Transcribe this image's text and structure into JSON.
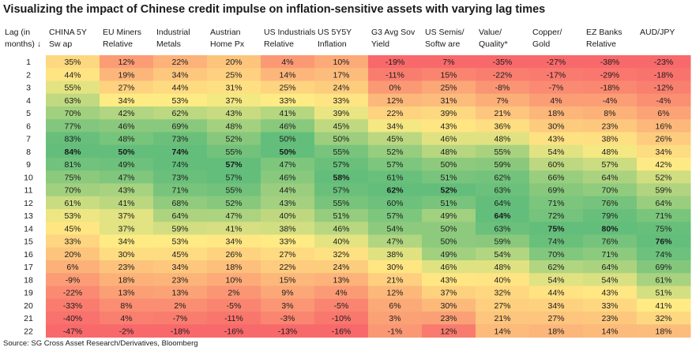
{
  "title": "Visualizing the impact of Chinese credit impulse on inflation-sensitive assets with varying lag times",
  "source": "Source: SG Cross Asset Research/Derivatives, Bloomberg",
  "chart_data": {
    "type": "heatmap",
    "row_header": [
      "Lag (in",
      "months) ↓"
    ],
    "columns": [
      [
        "CHINA 5Y",
        "Sw ap"
      ],
      [
        "EU Miners",
        "Relative"
      ],
      [
        "Industrial",
        "Metals"
      ],
      [
        "Austrian",
        "Home Px"
      ],
      [
        "US Industrials",
        "Relative"
      ],
      [
        "US 5Y5Y",
        "Inflation"
      ],
      [
        "G3 Avg Sov",
        "Yield"
      ],
      [
        "US Semis/",
        "Softw are"
      ],
      [
        "Value/",
        "Quality*"
      ],
      [
        "Copper/",
        "Gold"
      ],
      [
        "EZ Banks",
        "Relative"
      ],
      [
        "AUD/JPY"
      ]
    ],
    "rows": [
      "1",
      "2",
      "3",
      "4",
      "5",
      "6",
      "7",
      "8",
      "9",
      "10",
      "11",
      "12",
      "13",
      "14",
      "15",
      "16",
      "17",
      "18",
      "19",
      "20",
      "21",
      "22"
    ],
    "values": [
      [
        35,
        12,
        22,
        20,
        4,
        10,
        -19,
        7,
        -35,
        -27,
        -38,
        -23
      ],
      [
        44,
        19,
        34,
        25,
        14,
        17,
        -11,
        15,
        -22,
        -17,
        -29,
        -18
      ],
      [
        55,
        27,
        44,
        31,
        25,
        24,
        0,
        25,
        -8,
        -7,
        -18,
        -12
      ],
      [
        63,
        34,
        53,
        37,
        33,
        33,
        12,
        31,
        7,
        4,
        -4,
        -4
      ],
      [
        70,
        42,
        62,
        43,
        41,
        39,
        22,
        39,
        21,
        18,
        8,
        6
      ],
      [
        77,
        46,
        69,
        48,
        46,
        45,
        34,
        43,
        36,
        30,
        23,
        16
      ],
      [
        83,
        48,
        73,
        52,
        50,
        50,
        45,
        46,
        48,
        43,
        38,
        26
      ],
      [
        84,
        50,
        74,
        55,
        50,
        55,
        52,
        48,
        55,
        54,
        48,
        34
      ],
      [
        81,
        49,
        74,
        57,
        47,
        57,
        57,
        50,
        59,
        60,
        57,
        42
      ],
      [
        75,
        47,
        73,
        57,
        46,
        58,
        61,
        51,
        62,
        66,
        64,
        52
      ],
      [
        70,
        43,
        71,
        55,
        44,
        57,
        62,
        52,
        63,
        69,
        70,
        59
      ],
      [
        61,
        41,
        68,
        52,
        43,
        55,
        60,
        51,
        64,
        71,
        76,
        64
      ],
      [
        53,
        37,
        64,
        47,
        40,
        51,
        57,
        49,
        64,
        72,
        79,
        71
      ],
      [
        45,
        37,
        59,
        41,
        38,
        46,
        54,
        50,
        63,
        75,
        80,
        75
      ],
      [
        33,
        34,
        53,
        34,
        33,
        40,
        47,
        50,
        59,
        74,
        76,
        76
      ],
      [
        20,
        30,
        45,
        26,
        27,
        32,
        38,
        49,
        54,
        70,
        71,
        74
      ],
      [
        6,
        23,
        34,
        18,
        22,
        24,
        30,
        46,
        48,
        62,
        64,
        69
      ],
      [
        -9,
        18,
        23,
        10,
        15,
        13,
        21,
        43,
        40,
        54,
        54,
        61
      ],
      [
        -22,
        13,
        13,
        2,
        9,
        4,
        12,
        37,
        32,
        44,
        43,
        51
      ],
      [
        -33,
        8,
        2,
        -5,
        3,
        -5,
        6,
        30,
        27,
        34,
        33,
        41
      ],
      [
        -40,
        4,
        -7,
        -11,
        -3,
        -10,
        3,
        23,
        21,
        27,
        23,
        32
      ],
      [
        -47,
        -2,
        -18,
        -16,
        -13,
        -16,
        -1,
        12,
        14,
        18,
        14,
        18
      ]
    ],
    "value_suffix": "%",
    "bold_cells": [
      [
        7,
        0
      ],
      [
        7,
        1
      ],
      [
        7,
        2
      ],
      [
        8,
        3
      ],
      [
        7,
        4
      ],
      [
        9,
        5
      ],
      [
        10,
        6
      ],
      [
        10,
        7
      ],
      [
        12,
        8
      ],
      [
        13,
        9
      ],
      [
        13,
        10
      ],
      [
        14,
        11
      ]
    ],
    "color_scale": {
      "low": "#f8696b",
      "mid": "#ffeb84",
      "high": "#63be7b"
    }
  }
}
